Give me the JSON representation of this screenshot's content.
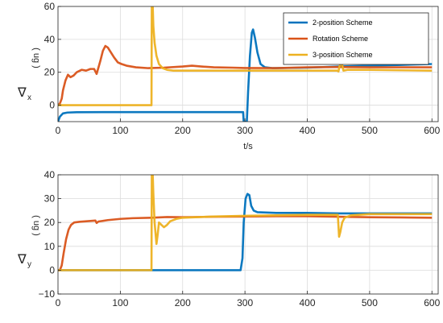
{
  "chart_data": [
    {
      "type": "line",
      "xlabel": "t/s",
      "ylabel": {
        "symbol": "∇",
        "sub": "x",
        "unit_paren_open": "(",
        "unit": "ug",
        "unit_paren_close": ")"
      },
      "xlim": [
        0,
        610
      ],
      "ylim": [
        -10,
        60
      ],
      "xticks": [
        0,
        100,
        200,
        300,
        400,
        500,
        600
      ],
      "yticks": [
        0,
        20,
        40,
        60
      ],
      "yticks_labels": [
        "0",
        "20",
        "40",
        "60"
      ],
      "grid": true,
      "legend_position": "top-right",
      "series": [
        {
          "name": "2-position Scheme",
          "color": "#0072BD",
          "points": [
            [
              0,
              -10
            ],
            [
              3,
              -7
            ],
            [
              8,
              -5
            ],
            [
              15,
              -4.5
            ],
            [
              30,
              -4.3
            ],
            [
              100,
              -4.2
            ],
            [
              200,
              -4.2
            ],
            [
              295,
              -4.2
            ],
            [
              297,
              -4.2
            ],
            [
              298,
              -10
            ],
            [
              300,
              -10
            ],
            [
              303,
              -10
            ],
            [
              305,
              8
            ],
            [
              308,
              30
            ],
            [
              311,
              44
            ],
            [
              313,
              46
            ],
            [
              316,
              41
            ],
            [
              320,
              32
            ],
            [
              325,
              25
            ],
            [
              332,
              23
            ],
            [
              345,
              22.5
            ],
            [
              400,
              22.8
            ],
            [
              450,
              23.5
            ],
            [
              500,
              24
            ],
            [
              550,
              24.5
            ],
            [
              600,
              25
            ]
          ]
        },
        {
          "name": "Rotation Scheme",
          "color": "#D95319",
          "points": [
            [
              0,
              0
            ],
            [
              3,
              1
            ],
            [
              6,
              4
            ],
            [
              8,
              9
            ],
            [
              12,
              15
            ],
            [
              16,
              18.5
            ],
            [
              20,
              17
            ],
            [
              25,
              18
            ],
            [
              30,
              20
            ],
            [
              38,
              21.5
            ],
            [
              45,
              21
            ],
            [
              52,
              22
            ],
            [
              58,
              22
            ],
            [
              62,
              19
            ],
            [
              65,
              23
            ],
            [
              68,
              27
            ],
            [
              72,
              33
            ],
            [
              76,
              36
            ],
            [
              80,
              35
            ],
            [
              85,
              32
            ],
            [
              90,
              29
            ],
            [
              96,
              26
            ],
            [
              102,
              25
            ],
            [
              110,
              24
            ],
            [
              125,
              23
            ],
            [
              145,
              22.5
            ],
            [
              170,
              22.8
            ],
            [
              200,
              23.5
            ],
            [
              215,
              24
            ],
            [
              230,
              23.5
            ],
            [
              250,
              23
            ],
            [
              280,
              22.8
            ],
            [
              300,
              22.6
            ],
            [
              350,
              22.5
            ],
            [
              400,
              23
            ],
            [
              450,
              23.2
            ],
            [
              500,
              23
            ],
            [
              550,
              23
            ],
            [
              600,
              23
            ]
          ]
        },
        {
          "name": "3-position Scheme",
          "color": "#EDB120",
          "points": [
            [
              0,
              0
            ],
            [
              50,
              0
            ],
            [
              100,
              0
            ],
            [
              149,
              0
            ],
            [
              150,
              0
            ],
            [
              150.5,
              60
            ],
            [
              152,
              60
            ],
            [
              153,
              48
            ],
            [
              155,
              38
            ],
            [
              158,
              30
            ],
            [
              162,
              25
            ],
            [
              168,
              22.5
            ],
            [
              175,
              21.5
            ],
            [
              185,
              21
            ],
            [
              200,
              21
            ],
            [
              250,
              21
            ],
            [
              300,
              21
            ],
            [
              350,
              21
            ],
            [
              400,
              21
            ],
            [
              448,
              21
            ],
            [
              450,
              20.5
            ],
            [
              452,
              24
            ],
            [
              455,
              26
            ],
            [
              458,
              21
            ],
            [
              465,
              21.5
            ],
            [
              500,
              21.5
            ],
            [
              550,
              21.2
            ],
            [
              600,
              21
            ]
          ]
        }
      ]
    },
    {
      "type": "line",
      "xlabel": "",
      "ylabel": {
        "symbol": "∇",
        "sub": "y",
        "unit_paren_open": "(",
        "unit": "ug",
        "unit_paren_close": ")"
      },
      "xlim": [
        0,
        610
      ],
      "ylim": [
        -10,
        40
      ],
      "xticks": [
        0,
        100,
        200,
        300,
        400,
        500,
        600
      ],
      "yticks": [
        -10,
        0,
        10,
        20,
        30,
        40
      ],
      "yticks_labels": [
        "−10",
        "0",
        "10",
        "20",
        "30",
        "40"
      ],
      "grid": true,
      "legend_position": "",
      "series": [
        {
          "name": "",
          "color": "#0072BD",
          "points": [
            [
              0,
              0
            ],
            [
              50,
              0
            ],
            [
              100,
              0
            ],
            [
              200,
              0
            ],
            [
              280,
              0
            ],
            [
              293,
              0
            ],
            [
              296,
              5
            ],
            [
              298,
              20
            ],
            [
              301,
              30
            ],
            [
              304,
              32
            ],
            [
              307,
              31.5
            ],
            [
              310,
              27
            ],
            [
              314,
              25
            ],
            [
              320,
              24.3
            ],
            [
              350,
              24
            ],
            [
              400,
              24
            ],
            [
              450,
              23.8
            ],
            [
              500,
              23.8
            ],
            [
              550,
              23.8
            ],
            [
              600,
              23.8
            ]
          ]
        },
        {
          "name": "",
          "color": "#D95319",
          "points": [
            [
              0,
              0
            ],
            [
              3,
              0
            ],
            [
              6,
              2
            ],
            [
              9,
              7
            ],
            [
              13,
              13
            ],
            [
              17,
              17
            ],
            [
              21,
              19
            ],
            [
              26,
              20
            ],
            [
              35,
              20.3
            ],
            [
              50,
              20.6
            ],
            [
              60,
              20.8
            ],
            [
              62,
              19.8
            ],
            [
              65,
              20.4
            ],
            [
              80,
              21
            ],
            [
              100,
              21.5
            ],
            [
              120,
              21.8
            ],
            [
              150,
              22
            ],
            [
              175,
              22.3
            ],
            [
              200,
              22.2
            ],
            [
              250,
              22.4
            ],
            [
              300,
              22.5
            ],
            [
              350,
              22.6
            ],
            [
              400,
              22.6
            ],
            [
              450,
              22.4
            ],
            [
              500,
              22.2
            ],
            [
              550,
              22.1
            ],
            [
              600,
              22
            ]
          ]
        },
        {
          "name": "",
          "color": "#EDB120",
          "points": [
            [
              0,
              0
            ],
            [
              50,
              0
            ],
            [
              100,
              0
            ],
            [
              149,
              0
            ],
            [
              150,
              0
            ],
            [
              150.5,
              40
            ],
            [
              152,
              40
            ],
            [
              153,
              32
            ],
            [
              155,
              20
            ],
            [
              158,
              11
            ],
            [
              160,
              15
            ],
            [
              162,
              20
            ],
            [
              166,
              19
            ],
            [
              170,
              18
            ],
            [
              175,
              19
            ],
            [
              180,
              20.5
            ],
            [
              190,
              21.5
            ],
            [
              200,
              22
            ],
            [
              250,
              22.5
            ],
            [
              300,
              22.8
            ],
            [
              350,
              23
            ],
            [
              400,
              23.2
            ],
            [
              449,
              23.2
            ],
            [
              451,
              14
            ],
            [
              453,
              16
            ],
            [
              456,
              20
            ],
            [
              460,
              22
            ],
            [
              470,
              23
            ],
            [
              500,
              23.5
            ],
            [
              550,
              23.5
            ],
            [
              600,
              23.5
            ]
          ]
        }
      ]
    }
  ]
}
